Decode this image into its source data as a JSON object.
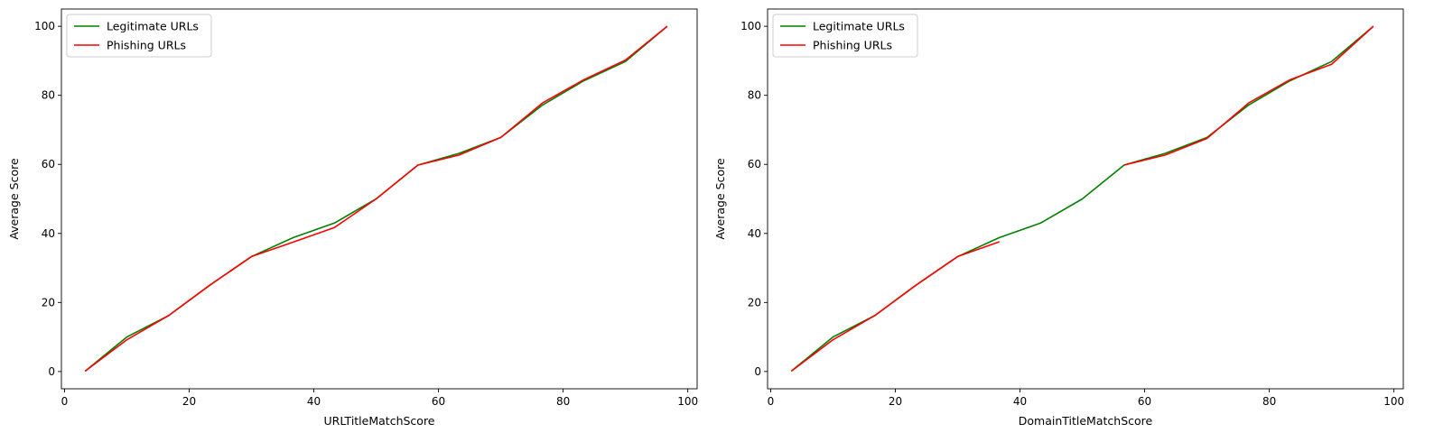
{
  "chart_data": [
    {
      "type": "line",
      "title": "",
      "xlabel": "URLTitleMatchScore",
      "ylabel": "Average Score",
      "xlim": [
        -0.5,
        101.5
      ],
      "ylim": [
        -5,
        105
      ],
      "xticks": [
        0,
        20,
        40,
        60,
        80,
        100
      ],
      "yticks": [
        0,
        20,
        40,
        60,
        80,
        100
      ],
      "grid": false,
      "legend_position": "upper-left",
      "series": [
        {
          "name": "Legitimate URLs",
          "color": "#008000",
          "x": [
            3.3,
            10.0,
            16.7,
            23.3,
            30.0,
            36.7,
            43.3,
            50.0,
            56.7,
            63.3,
            70.0,
            76.7,
            83.3,
            90.0,
            96.7
          ],
          "y": [
            0.1,
            10.0,
            16.2,
            25.0,
            33.3,
            38.8,
            43.0,
            50.0,
            59.8,
            63.2,
            67.8,
            77.2,
            84.2,
            89.8,
            100.0
          ]
        },
        {
          "name": "Phishing URLs",
          "color": "#ff0000",
          "x": [
            3.3,
            10.0,
            16.7,
            23.3,
            30.0,
            36.7,
            43.3,
            50.0,
            56.7,
            63.3,
            70.0,
            76.7,
            83.3,
            90.0,
            96.7
          ],
          "y": [
            0.1,
            9.2,
            16.2,
            25.0,
            33.3,
            37.5,
            41.7,
            50.0,
            59.8,
            62.7,
            67.8,
            77.8,
            84.5,
            90.2,
            100.0
          ]
        }
      ]
    },
    {
      "type": "line",
      "title": "",
      "xlabel": "DomainTitleMatchScore",
      "ylabel": "Average Score",
      "xlim": [
        -0.5,
        101.5
      ],
      "ylim": [
        -5,
        105
      ],
      "xticks": [
        0,
        20,
        40,
        60,
        80,
        100
      ],
      "yticks": [
        0,
        20,
        40,
        60,
        80,
        100
      ],
      "grid": false,
      "legend_position": "upper-left",
      "series": [
        {
          "name": "Legitimate URLs",
          "color": "#008000",
          "x": [
            3.3,
            10.0,
            16.7,
            23.3,
            30.0,
            36.7,
            43.3,
            50.0,
            56.7,
            63.3,
            70.0,
            76.7,
            83.3,
            90.0,
            96.7
          ],
          "y": [
            0.1,
            10.0,
            16.2,
            25.0,
            33.3,
            38.8,
            43.0,
            50.0,
            59.8,
            63.2,
            67.8,
            77.2,
            84.2,
            89.8,
            100.0
          ]
        },
        {
          "name": "Phishing URLs",
          "color": "#ff0000",
          "x": [
            3.3,
            10.0,
            16.7,
            23.3,
            30.0,
            36.7,
            null,
            null,
            56.7,
            63.3,
            70.0,
            76.7,
            83.3,
            90.0,
            96.7
          ],
          "y": [
            0.1,
            9.2,
            16.2,
            25.0,
            33.3,
            37.6,
            null,
            null,
            59.8,
            62.7,
            67.5,
            77.8,
            84.5,
            89.0,
            100.0
          ]
        }
      ]
    }
  ]
}
